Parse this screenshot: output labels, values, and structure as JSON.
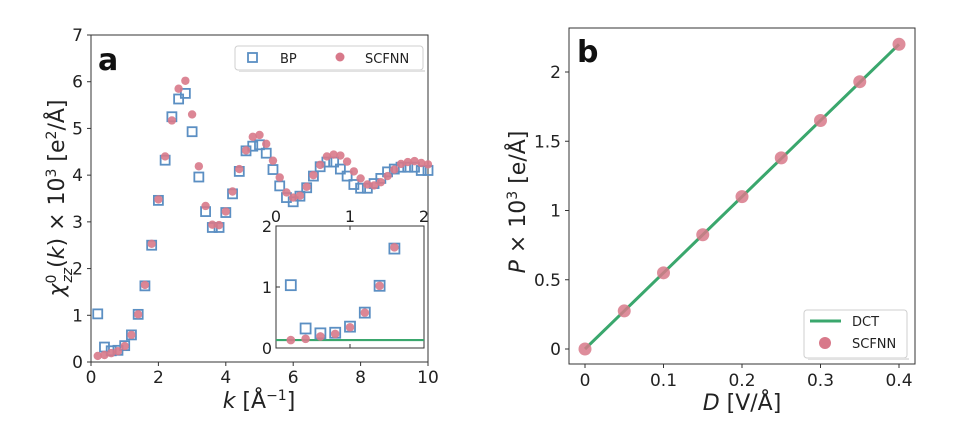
{
  "chart_data": [
    {
      "panel": "a",
      "type": "scatter",
      "title": "",
      "xlabel": "k [Å⁻¹]",
      "ylabel": "χ⁰zz(k) × 10³ [e²/Å]",
      "xlim": [
        0,
        10
      ],
      "ylim": [
        0,
        7
      ],
      "xticks": [
        0,
        2,
        4,
        6,
        8,
        10
      ],
      "yticks": [
        0,
        1,
        2,
        3,
        4,
        5,
        6,
        7
      ],
      "grid": false,
      "legend": {
        "placement": "top-right",
        "entries": [
          "BP",
          "SCFNN"
        ]
      },
      "x": [
        0.2,
        0.4,
        0.6,
        0.8,
        1.0,
        1.2,
        1.4,
        1.6,
        1.8,
        2.0,
        2.2,
        2.4,
        2.6,
        2.8,
        3.0,
        3.2,
        3.4,
        3.6,
        3.8,
        4.0,
        4.2,
        4.4,
        4.6,
        4.8,
        5.0,
        5.2,
        5.4,
        5.6,
        5.8,
        6.0,
        6.2,
        6.4,
        6.6,
        6.8,
        7.0,
        7.2,
        7.4,
        7.6,
        7.8,
        8.0,
        8.2,
        8.4,
        8.6,
        8.8,
        9.0,
        9.2,
        9.4,
        9.6,
        9.8,
        10.0
      ],
      "series": [
        {
          "name": "BP",
          "marker": "square-open",
          "color": "#5b8fc3",
          "values": [
            1.03,
            0.32,
            0.24,
            0.25,
            0.35,
            0.58,
            1.02,
            1.63,
            2.5,
            3.46,
            4.32,
            5.25,
            5.63,
            5.75,
            4.93,
            3.96,
            3.22,
            2.88,
            2.88,
            3.2,
            3.6,
            4.08,
            4.52,
            4.62,
            4.65,
            4.47,
            4.12,
            3.77,
            3.52,
            3.43,
            3.55,
            3.73,
            3.98,
            4.18,
            4.28,
            4.28,
            4.13,
            3.98,
            3.8,
            3.72,
            3.72,
            3.82,
            3.93,
            4.07,
            4.13,
            4.17,
            4.17,
            4.17,
            4.1,
            4.1
          ]
        },
        {
          "name": "SCFNN",
          "marker": "circle-filled",
          "color": "#d8798a",
          "values": [
            0.13,
            0.15,
            0.19,
            0.23,
            0.34,
            0.58,
            1.02,
            1.65,
            2.53,
            3.48,
            4.4,
            5.17,
            5.85,
            6.02,
            5.3,
            4.19,
            3.34,
            2.94,
            2.93,
            3.22,
            3.65,
            4.13,
            4.53,
            4.82,
            4.86,
            4.67,
            4.31,
            3.95,
            3.63,
            3.52,
            3.56,
            3.75,
            4.0,
            4.22,
            4.4,
            4.44,
            4.42,
            4.29,
            4.08,
            3.93,
            3.8,
            3.78,
            3.85,
            3.98,
            4.12,
            4.24,
            4.28,
            4.3,
            4.26,
            4.23
          ]
        }
      ],
      "inset": {
        "xlim": [
          0,
          2
        ],
        "ylim": [
          0,
          2
        ],
        "xticks": [
          0,
          1,
          2
        ],
        "yticks": [
          0,
          1,
          2
        ],
        "x": [
          0.2,
          0.4,
          0.6,
          0.8,
          1.0,
          1.2,
          1.4,
          1.6
        ],
        "series": [
          {
            "name": "BP",
            "values": [
              1.03,
              0.32,
              0.24,
              0.25,
              0.35,
              0.58,
              1.02,
              1.63
            ]
          },
          {
            "name": "SCFNN",
            "values": [
              0.13,
              0.15,
              0.19,
              0.23,
              0.34,
              0.58,
              1.02,
              1.65
            ]
          }
        ],
        "hline": {
          "value": 0.13,
          "color": "#3aa76d"
        }
      }
    },
    {
      "panel": "b",
      "type": "line",
      "title": "",
      "xlabel": "D [V/Å]",
      "ylabel": "P × 10³ [e/Å]",
      "xlim": [
        -0.02,
        0.42
      ],
      "ylim": [
        -0.1,
        2.3
      ],
      "xticks": [
        0,
        0.1,
        0.2,
        0.3,
        0.4
      ],
      "xticklabels": [
        "0",
        "0.1",
        "0.2",
        "0.3",
        "0.4"
      ],
      "yticks": [
        0,
        0.5,
        1,
        1.5,
        2
      ],
      "yticklabels": [
        "0",
        "0.5",
        "1",
        "1.5",
        "2"
      ],
      "grid": false,
      "legend": {
        "placement": "bottom-right",
        "entries": [
          "DCT",
          "SCFNN"
        ]
      },
      "x": [
        0,
        0.05,
        0.1,
        0.15,
        0.2,
        0.25,
        0.3,
        0.35,
        0.4
      ],
      "series": [
        {
          "name": "DCT",
          "marker": "line",
          "color": "#3aa76d",
          "values": [
            0,
            0.275,
            0.55,
            0.825,
            1.1,
            1.375,
            1.65,
            1.925,
            2.2
          ]
        },
        {
          "name": "SCFNN",
          "marker": "circle-filled",
          "color": "#d8798a",
          "values": [
            0,
            0.275,
            0.55,
            0.825,
            1.1,
            1.38,
            1.65,
            1.93,
            2.2
          ]
        }
      ]
    }
  ],
  "labels": {
    "panel_a": "a",
    "panel_b": "b",
    "a_legend_bp": "BP",
    "a_legend_scfnn": "SCFNN",
    "b_legend_dct": "DCT",
    "b_legend_scfnn": "SCFNN"
  }
}
